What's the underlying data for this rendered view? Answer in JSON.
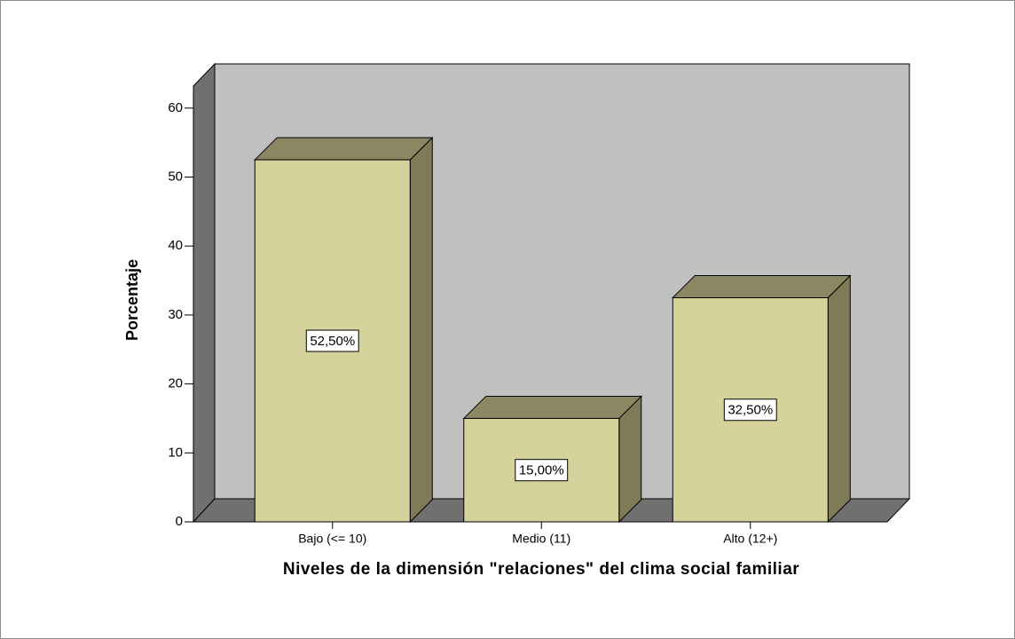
{
  "chart_data": {
    "type": "bar",
    "y_label": "Porcentaje",
    "x_label": "Niveles de la dimensión \"relaciones\" del clima social familiar",
    "categories": [
      "Bajo (<= 10)",
      "Medio (11)",
      "Alto (12+)"
    ],
    "values": [
      52.5,
      15,
      32.5
    ],
    "value_labels": [
      "52,50%",
      "15,00%",
      "32,50%"
    ],
    "color": "#d6d29c",
    "ylim": [
      0,
      63
    ],
    "yticks": [
      0,
      10,
      20,
      30,
      40,
      50,
      60
    ]
  }
}
